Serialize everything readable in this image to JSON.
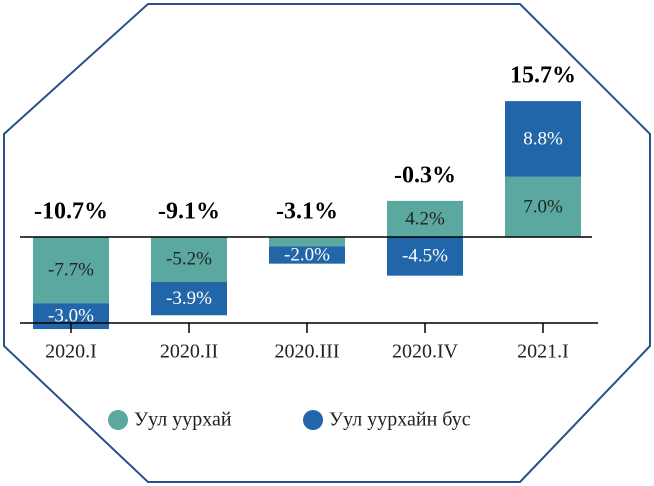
{
  "chart_data": {
    "type": "bar",
    "stacked": true,
    "categories": [
      "2020.I",
      "2020.II",
      "2020.III",
      "2020.IV",
      "2021.I"
    ],
    "series": [
      {
        "name": "Уул уурхай",
        "color": "#5ba8a0",
        "values": [
          -7.7,
          -5.2,
          -1.1,
          4.2,
          7.0
        ],
        "value_labels": [
          "-7.7%",
          "-5.2%",
          null,
          "4.2%",
          "7.0%"
        ]
      },
      {
        "name": "Уул уурхайн бус",
        "color": "#2166a8",
        "values": [
          -3.0,
          -3.9,
          -2.0,
          -4.5,
          8.8
        ],
        "value_labels": [
          "-3.0%",
          "-3.9%",
          "-2.0%",
          "-4.5%",
          "8.8%"
        ]
      }
    ],
    "totals": [
      -10.7,
      -9.1,
      -3.1,
      -0.3,
      15.7
    ],
    "total_labels": [
      "-10.7%",
      "-9.1%",
      "-3.1%",
      "-0.3%",
      "15.7%"
    ]
  }
}
